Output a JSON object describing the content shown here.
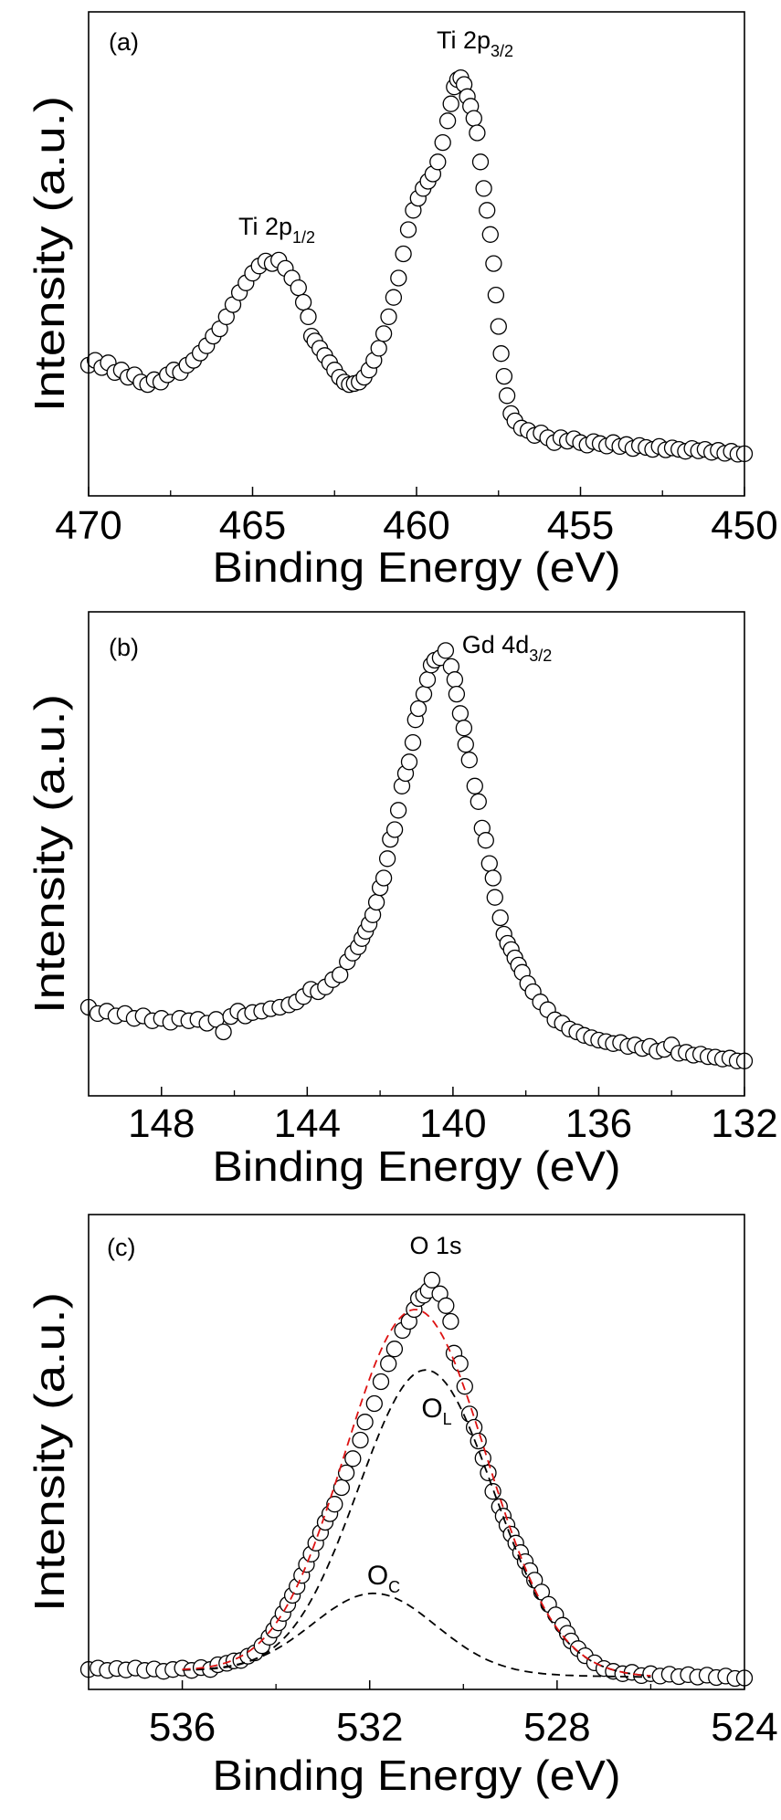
{
  "chart_data": [
    {
      "type": "scatter",
      "panel_label": "(a)",
      "xlabel": "Binding Energy (eV)",
      "ylabel": "Intensity (a.u.)",
      "xlim": [
        470,
        450
      ],
      "ylim": [
        0,
        100
      ],
      "xticks": [
        470,
        465,
        460,
        455,
        450
      ],
      "xtick_labels": [
        "470",
        "465",
        "460",
        "455",
        "450"
      ],
      "minor_xticks": [
        467.5,
        462.5,
        457.5,
        452.5
      ],
      "annotations": [
        {
          "text": "Ti 2p",
          "sub": "3/2"
        },
        {
          "text": "Ti 2p",
          "sub": "1/2"
        }
      ],
      "points": [
        [
          470,
          27
        ],
        [
          469.8,
          28
        ],
        [
          469.6,
          26.5
        ],
        [
          469.4,
          27.5
        ],
        [
          469.2,
          25.5
        ],
        [
          469,
          26
        ],
        [
          468.8,
          24.5
        ],
        [
          468.6,
          25
        ],
        [
          468.4,
          23.5
        ],
        [
          468.2,
          23
        ],
        [
          468,
          24
        ],
        [
          467.8,
          23.5
        ],
        [
          467.6,
          25
        ],
        [
          467.4,
          26
        ],
        [
          467.2,
          25.5
        ],
        [
          467,
          27
        ],
        [
          466.8,
          28
        ],
        [
          466.6,
          29.5
        ],
        [
          466.4,
          31
        ],
        [
          466.2,
          33
        ],
        [
          466,
          34.5
        ],
        [
          465.8,
          37
        ],
        [
          465.6,
          39.5
        ],
        [
          465.4,
          42
        ],
        [
          465.2,
          44
        ],
        [
          465,
          46
        ],
        [
          464.8,
          47.5
        ],
        [
          464.6,
          48.5
        ],
        [
          464.4,
          48
        ],
        [
          464.2,
          48.7
        ],
        [
          464,
          47
        ],
        [
          463.8,
          45
        ],
        [
          463.6,
          43
        ],
        [
          463.45,
          40
        ],
        [
          463.3,
          37
        ],
        [
          463.2,
          33
        ],
        [
          463.1,
          32
        ],
        [
          462.95,
          30.5
        ],
        [
          462.8,
          29
        ],
        [
          462.65,
          27.5
        ],
        [
          462.5,
          26
        ],
        [
          462.35,
          24.5
        ],
        [
          462.2,
          23.5
        ],
        [
          462.05,
          23
        ],
        [
          461.9,
          23.2
        ],
        [
          461.75,
          23.5
        ],
        [
          461.6,
          24.5
        ],
        [
          461.45,
          26
        ],
        [
          461.3,
          28
        ],
        [
          461.15,
          30.5
        ],
        [
          461,
          33.5
        ],
        [
          460.85,
          37
        ],
        [
          460.7,
          41
        ],
        [
          460.55,
          45
        ],
        [
          460.4,
          50
        ],
        [
          460.25,
          55
        ],
        [
          460.1,
          59
        ],
        [
          459.95,
          61.5
        ],
        [
          459.8,
          63.5
        ],
        [
          459.65,
          65
        ],
        [
          459.5,
          66.5
        ],
        [
          459.35,
          69
        ],
        [
          459.2,
          73
        ],
        [
          459.05,
          77.5
        ],
        [
          458.95,
          81
        ],
        [
          458.85,
          84.5
        ],
        [
          458.75,
          86
        ],
        [
          458.65,
          86.4
        ],
        [
          458.55,
          85
        ],
        [
          458.45,
          82.5
        ],
        [
          458.35,
          80.5
        ],
        [
          458.25,
          78
        ],
        [
          458.15,
          75
        ],
        [
          458.05,
          69
        ],
        [
          457.95,
          63.5
        ],
        [
          457.85,
          59
        ],
        [
          457.75,
          54
        ],
        [
          457.65,
          48
        ],
        [
          457.58,
          41.5
        ],
        [
          457.5,
          35
        ],
        [
          457.42,
          29.4
        ],
        [
          457.33,
          24.7
        ],
        [
          457.24,
          20.7
        ],
        [
          457.12,
          17
        ],
        [
          457,
          15.5
        ],
        [
          456.8,
          14
        ],
        [
          456.6,
          13.5
        ],
        [
          456.4,
          12.5
        ],
        [
          456.2,
          13
        ],
        [
          456,
          12
        ],
        [
          455.8,
          11
        ],
        [
          455.6,
          12
        ],
        [
          455.4,
          11.3
        ],
        [
          455.2,
          11.8
        ],
        [
          455,
          11
        ],
        [
          454.8,
          10.5
        ],
        [
          454.6,
          11.2
        ],
        [
          454.4,
          10.8
        ],
        [
          454.2,
          10.3
        ],
        [
          454,
          11
        ],
        [
          453.8,
          10.2
        ],
        [
          453.6,
          10.6
        ],
        [
          453.4,
          9.8
        ],
        [
          453.2,
          10.4
        ],
        [
          453,
          10
        ],
        [
          452.8,
          9.6
        ],
        [
          452.6,
          10.2
        ],
        [
          452.4,
          9.5
        ],
        [
          452.2,
          9.9
        ],
        [
          452,
          9.6
        ],
        [
          451.8,
          9.2
        ],
        [
          451.6,
          9.8
        ],
        [
          451.4,
          9.3
        ],
        [
          451.2,
          9.6
        ],
        [
          451,
          9
        ],
        [
          450.8,
          9.4
        ],
        [
          450.6,
          8.8
        ],
        [
          450.4,
          9.2
        ],
        [
          450.2,
          8.6
        ],
        [
          450,
          8.7
        ]
      ]
    },
    {
      "type": "scatter",
      "panel_label": "(b)",
      "xlabel": "Binding Energy (eV)",
      "ylabel": "Intensity (a.u.)",
      "xlim": [
        150,
        132
      ],
      "ylim": [
        0,
        100
      ],
      "xticks": [
        148,
        144,
        140,
        136,
        132
      ],
      "xtick_labels": [
        "148",
        "144",
        "140",
        "136",
        "132"
      ],
      "minor_xticks": [
        146,
        142,
        138,
        134
      ],
      "annotations": [
        {
          "text": "Gd 4d",
          "sub": "3/2"
        }
      ],
      "points": [
        [
          150,
          18.3
        ],
        [
          149.75,
          17
        ],
        [
          149.5,
          17.5
        ],
        [
          149.25,
          16.5
        ],
        [
          149,
          17
        ],
        [
          148.75,
          16
        ],
        [
          148.5,
          16.5
        ],
        [
          148.25,
          15.5
        ],
        [
          148,
          16
        ],
        [
          147.75,
          15.2
        ],
        [
          147.5,
          16
        ],
        [
          147.25,
          15.5
        ],
        [
          147,
          15.8
        ],
        [
          146.75,
          15
        ],
        [
          146.5,
          15.8
        ],
        [
          146.3,
          13.2
        ],
        [
          146.1,
          16.4
        ],
        [
          145.9,
          17.5
        ],
        [
          145.7,
          16.5
        ],
        [
          145.5,
          17.2
        ],
        [
          145.25,
          17.5
        ],
        [
          145,
          18
        ],
        [
          144.75,
          18.3
        ],
        [
          144.5,
          18.8
        ],
        [
          144.3,
          19.4
        ],
        [
          144.1,
          20.5
        ],
        [
          143.9,
          22
        ],
        [
          143.7,
          21.5
        ],
        [
          143.5,
          22.5
        ],
        [
          143.3,
          24
        ],
        [
          143.1,
          25
        ],
        [
          142.9,
          27.7
        ],
        [
          142.75,
          29.5
        ],
        [
          142.6,
          30.8
        ],
        [
          142.5,
          32.5
        ],
        [
          142.4,
          34
        ],
        [
          142.3,
          35.5
        ],
        [
          142.2,
          37.4
        ],
        [
          142.1,
          40
        ],
        [
          142,
          43
        ],
        [
          141.9,
          45
        ],
        [
          141.8,
          49
        ],
        [
          141.72,
          53
        ],
        [
          141.6,
          55
        ],
        [
          141.5,
          59
        ],
        [
          141.4,
          64
        ],
        [
          141.3,
          66.6
        ],
        [
          141.2,
          69
        ],
        [
          141.1,
          73
        ],
        [
          141.03,
          77.7
        ],
        [
          140.95,
          80
        ],
        [
          140.8,
          83
        ],
        [
          140.7,
          86
        ],
        [
          140.6,
          89
        ],
        [
          140.5,
          90
        ],
        [
          140.35,
          90.5
        ],
        [
          140.2,
          92
        ],
        [
          140.05,
          88.7
        ],
        [
          139.95,
          86
        ],
        [
          139.9,
          83
        ],
        [
          139.8,
          79
        ],
        [
          139.7,
          76
        ],
        [
          139.65,
          72.6
        ],
        [
          139.55,
          69.4
        ],
        [
          139.4,
          64
        ],
        [
          139.3,
          60.8
        ],
        [
          139.2,
          55.3
        ],
        [
          139.1,
          52.8
        ],
        [
          139,
          48
        ],
        [
          138.9,
          45
        ],
        [
          138.85,
          41
        ],
        [
          138.7,
          36.8
        ],
        [
          138.6,
          33.4
        ],
        [
          138.5,
          31.5
        ],
        [
          138.4,
          30.2
        ],
        [
          138.3,
          28.5
        ],
        [
          138.2,
          27
        ],
        [
          138.1,
          25.5
        ],
        [
          137.95,
          23.2
        ],
        [
          137.8,
          21.5
        ],
        [
          137.6,
          19.4
        ],
        [
          137.4,
          17.8
        ],
        [
          137.2,
          15.7
        ],
        [
          137,
          15
        ],
        [
          136.8,
          13.8
        ],
        [
          136.6,
          13.2
        ],
        [
          136.4,
          12.5
        ],
        [
          136.2,
          12
        ],
        [
          136,
          11.5
        ],
        [
          135.8,
          11.2
        ],
        [
          135.6,
          10.8
        ],
        [
          135.4,
          11
        ],
        [
          135.2,
          10.2
        ],
        [
          135,
          10.5
        ],
        [
          134.8,
          9.8
        ],
        [
          134.6,
          10.2
        ],
        [
          134.4,
          9.2
        ],
        [
          134.2,
          9.6
        ],
        [
          134,
          10.5
        ],
        [
          133.8,
          8.8
        ],
        [
          133.6,
          9
        ],
        [
          133.4,
          8.4
        ],
        [
          133.2,
          8.6
        ],
        [
          133,
          8.1
        ],
        [
          132.8,
          8
        ],
        [
          132.6,
          7.6
        ],
        [
          132.4,
          7.8
        ],
        [
          132.2,
          7.2
        ],
        [
          132,
          7.2
        ]
      ]
    },
    {
      "type": "scatter",
      "panel_label": "(c)",
      "xlabel": "Binding Energy (eV)",
      "ylabel": "Intensity (a.u.)",
      "xlim": [
        538,
        524
      ],
      "ylim": [
        0,
        100
      ],
      "xticks": [
        536,
        532,
        528,
        524
      ],
      "xtick_labels": [
        "536",
        "532",
        "528",
        "524"
      ],
      "minor_xticks": [
        534,
        530,
        526
      ],
      "annotations": [
        {
          "text": "O 1s",
          "sub": ""
        },
        {
          "text": "O",
          "sub": "L"
        },
        {
          "text": "O",
          "sub": "C"
        }
      ],
      "points": [
        [
          538,
          4.2
        ],
        [
          537.8,
          4.5
        ],
        [
          537.6,
          4
        ],
        [
          537.4,
          4.4
        ],
        [
          537.2,
          4.1
        ],
        [
          537,
          4.5
        ],
        [
          536.8,
          4
        ],
        [
          536.6,
          4.3
        ],
        [
          536.4,
          3.8
        ],
        [
          536.2,
          4.2
        ],
        [
          536,
          4.5
        ],
        [
          535.8,
          4
        ],
        [
          535.6,
          4.6
        ],
        [
          535.4,
          4.2
        ],
        [
          535.24,
          5.2
        ],
        [
          535.05,
          5.5
        ],
        [
          534.9,
          6
        ],
        [
          534.75,
          6.1
        ],
        [
          534.6,
          7
        ],
        [
          534.45,
          7.7
        ],
        [
          534.3,
          9.2
        ],
        [
          534.15,
          11
        ],
        [
          534.05,
          12.5
        ],
        [
          533.95,
          14
        ],
        [
          533.85,
          16
        ],
        [
          533.75,
          17.9
        ],
        [
          533.65,
          19.8
        ],
        [
          533.55,
          21.7
        ],
        [
          533.45,
          24
        ],
        [
          533.35,
          26.3
        ],
        [
          533.25,
          28.5
        ],
        [
          533.15,
          30.8
        ],
        [
          533.05,
          33
        ],
        [
          532.95,
          35.2
        ],
        [
          532.85,
          37
        ],
        [
          532.75,
          39
        ],
        [
          532.6,
          42.5
        ],
        [
          532.5,
          45.6
        ],
        [
          532.36,
          48.6
        ],
        [
          532.2,
          52.5
        ],
        [
          532.1,
          56.3
        ],
        [
          531.9,
          60.2
        ],
        [
          531.76,
          64.8
        ],
        [
          531.6,
          68.6
        ],
        [
          531.47,
          71.7
        ],
        [
          531.3,
          75.6
        ],
        [
          531.16,
          77.5
        ],
        [
          531.05,
          80
        ],
        [
          530.96,
          82.3
        ],
        [
          530.85,
          83
        ],
        [
          530.75,
          84
        ],
        [
          530.67,
          86.2
        ],
        [
          530.5,
          83.3
        ],
        [
          530.37,
          80.8
        ],
        [
          530.27,
          77.5
        ],
        [
          530.2,
          70.8
        ],
        [
          530.07,
          68.6
        ],
        [
          529.97,
          63.8
        ],
        [
          529.87,
          58
        ],
        [
          529.77,
          55.2
        ],
        [
          529.68,
          52.3
        ],
        [
          529.58,
          48.7
        ],
        [
          529.47,
          45.6
        ],
        [
          529.37,
          41.7
        ],
        [
          529.23,
          38.5
        ],
        [
          529.15,
          36.5
        ],
        [
          529.07,
          34.6
        ],
        [
          528.98,
          32.7
        ],
        [
          528.88,
          30.8
        ],
        [
          528.78,
          28.8
        ],
        [
          528.68,
          26.9
        ],
        [
          528.58,
          25
        ],
        [
          528.48,
          23
        ],
        [
          528.33,
          20.5
        ],
        [
          528.18,
          17.9
        ],
        [
          528.03,
          15.7
        ],
        [
          527.88,
          13.5
        ],
        [
          527.78,
          11.8
        ],
        [
          527.7,
          10.2
        ],
        [
          527.55,
          8.6
        ],
        [
          527.4,
          7.1
        ],
        [
          527.2,
          5.6
        ],
        [
          527,
          4.4
        ],
        [
          526.8,
          3.8
        ],
        [
          526.6,
          3.3
        ],
        [
          526.4,
          3.6
        ],
        [
          526.2,
          2.9
        ],
        [
          526,
          3.3
        ],
        [
          525.8,
          2.8
        ],
        [
          525.6,
          3.2
        ],
        [
          525.4,
          2.7
        ],
        [
          525.2,
          3.1
        ],
        [
          525,
          2.6
        ],
        [
          524.8,
          3
        ],
        [
          524.6,
          2.5
        ],
        [
          524.4,
          2.8
        ],
        [
          524.2,
          2.3
        ],
        [
          524,
          2.4
        ]
      ],
      "fit": {
        "range": [
          536,
          526
        ],
        "baseline": [
          [
            536,
            4.0
          ],
          [
            526,
            2.6
          ]
        ],
        "components": [
          {
            "name": "O_L",
            "center": 530.8,
            "height": 64,
            "fwhm": 3.4,
            "color": "#000000"
          },
          {
            "name": "O_C",
            "center": 531.9,
            "height": 16.8,
            "fwhm": 3.1,
            "color": "#000000"
          }
        ],
        "envelope_color": "#dd1111"
      }
    }
  ]
}
